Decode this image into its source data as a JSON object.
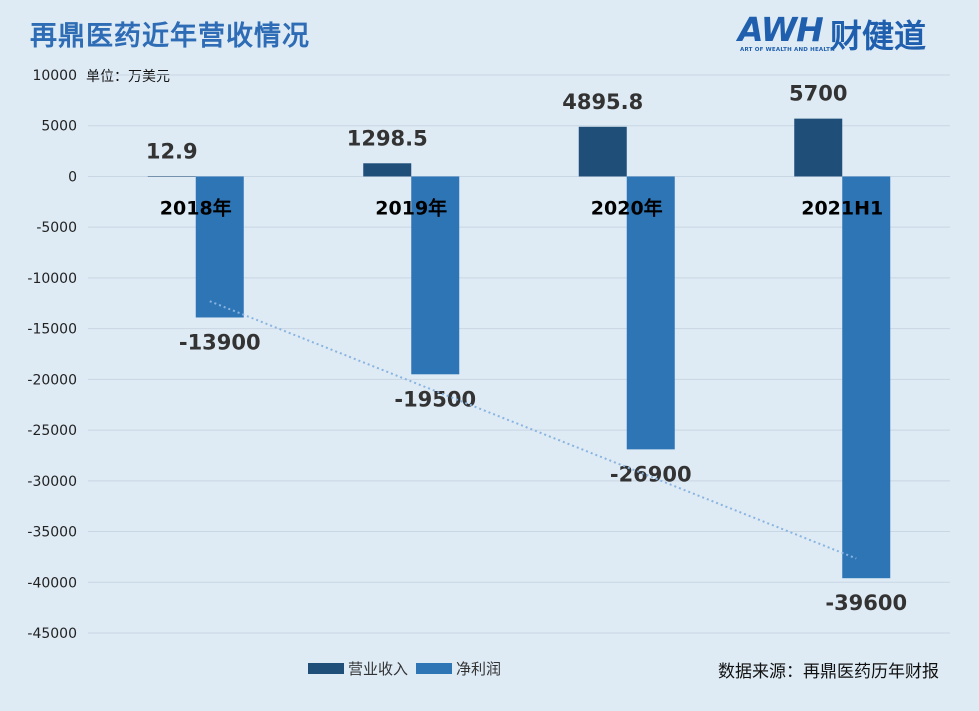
{
  "title": "再鼎医药近年营收情况",
  "logo": {
    "brand": "AWH",
    "name": "财健道",
    "tagline": "ART OF WEALTH AND HEALTH"
  },
  "unit_label": "单位：万美元",
  "source": "数据来源：再鼎医药历年财报",
  "colors": {
    "revenue": "#1f4e79",
    "net_profit": "#2e75b6",
    "trendline": "#8ab4e0",
    "title": "#2e6cb5"
  },
  "chart_data": {
    "type": "bar",
    "categories": [
      "2018年",
      "2019年",
      "2020年",
      "2021H1"
    ],
    "series": [
      {
        "name": "营业收入",
        "values": [
          12.9,
          1298.5,
          4895.8,
          5700
        ],
        "labels": [
          "12.9",
          "1298.5",
          "4895.8",
          "5700"
        ]
      },
      {
        "name": "净利润",
        "values": [
          -13900,
          -19500,
          -26900,
          -39600
        ],
        "labels": [
          "-13900",
          "-19500",
          "-26900",
          "-39600"
        ]
      }
    ],
    "yticks": [
      "10000",
      "5000",
      "0",
      "-5000",
      "-10000",
      "-15000",
      "-20000",
      "-25000",
      "-30000",
      "-35000",
      "-40000",
      "-45000"
    ],
    "ylim": [
      -45000,
      10000
    ],
    "trendline": {
      "series": "净利润",
      "style": "dotted linear"
    },
    "grid": true,
    "legend": "bottom-center"
  }
}
